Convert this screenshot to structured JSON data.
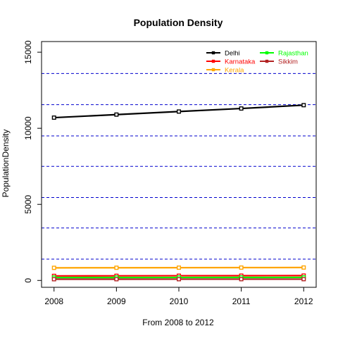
{
  "chart_data": {
    "type": "line",
    "title": "Population Density",
    "xlabel": "From 2008 to 2012",
    "ylabel": "PopulationDensity",
    "x": [
      2008,
      2009,
      2010,
      2011,
      2012
    ],
    "xlim": [
      2007.8,
      2012.2
    ],
    "ylim": [
      -450,
      15700
    ],
    "y_ticks": [
      0,
      5000,
      10000,
      15000
    ],
    "series": [
      {
        "name": "Delhi",
        "color": "#000000",
        "values": [
          10700,
          10900,
          11100,
          11300,
          11520
        ]
      },
      {
        "name": "Karnataka",
        "color": "#ff0000",
        "values": [
          300,
          305,
          310,
          315,
          320
        ]
      },
      {
        "name": "Kerala",
        "color": "#ffa500",
        "values": [
          830,
          835,
          840,
          845,
          850
        ]
      },
      {
        "name": "Rajasthan",
        "color": "#00ff00",
        "values": [
          190,
          193,
          196,
          199,
          200
        ]
      },
      {
        "name": "Sikkim",
        "color": "#b22222",
        "values": [
          82,
          83,
          84,
          85,
          86
        ]
      }
    ],
    "reference_lines": {
      "color": "#0000cd",
      "style": "dashed",
      "y": [
        1400,
        3450,
        5450,
        7500,
        9500,
        11550,
        13600
      ]
    },
    "legend_placement": "top-right",
    "grid": false
  }
}
